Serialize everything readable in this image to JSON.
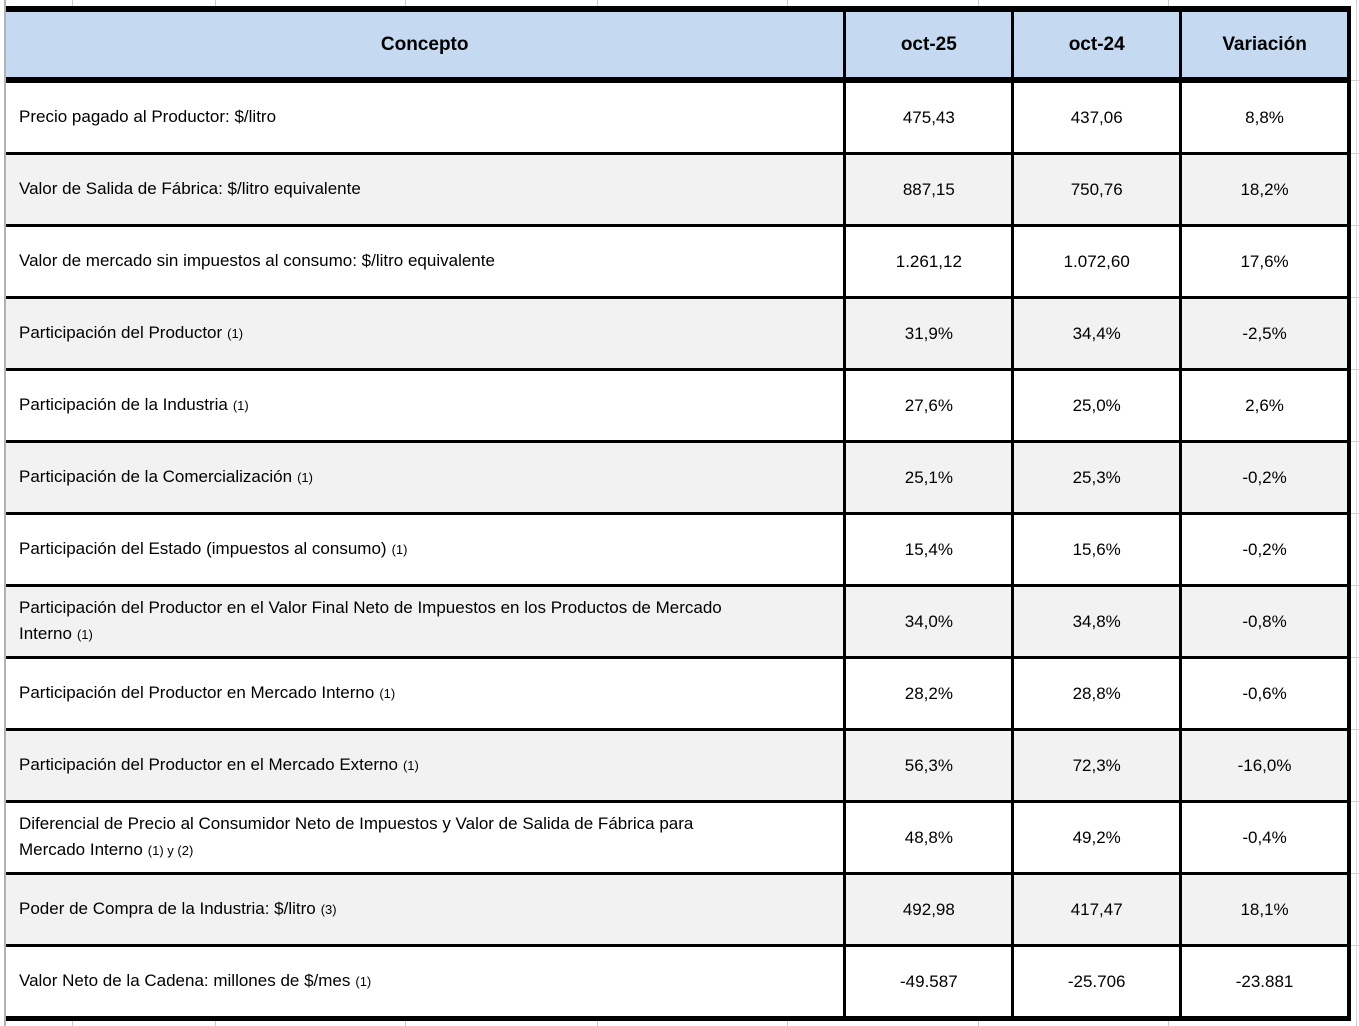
{
  "table": {
    "columns": [
      "Concepto",
      "oct-25",
      "oct-24",
      "Variación"
    ],
    "rows": [
      {
        "label": "Precio pagado al Productor: $/litro",
        "note": "",
        "oct25": "475,43",
        "oct24": "437,06",
        "variacion": "8,8%",
        "shaded": false
      },
      {
        "label": "Valor de Salida de Fábrica: $/litro equivalente",
        "note": "",
        "oct25": "887,15",
        "oct24": "750,76",
        "variacion": "18,2%",
        "shaded": true
      },
      {
        "label": "Valor de mercado sin impuestos al consumo: $/litro equivalente",
        "note": "",
        "oct25": "1.261,12",
        "oct24": "1.072,60",
        "variacion": "17,6%",
        "shaded": false
      },
      {
        "label": "Participación del Productor",
        "note": "(1)",
        "oct25": "31,9%",
        "oct24": "34,4%",
        "variacion": "-2,5%",
        "shaded": true
      },
      {
        "label": "Participación de la Industria",
        "note": "(1)",
        "oct25": "27,6%",
        "oct24": "25,0%",
        "variacion": "2,6%",
        "shaded": false
      },
      {
        "label": "Participación de la Comercialización",
        "note": "(1)",
        "oct25": "25,1%",
        "oct24": "25,3%",
        "variacion": "-0,2%",
        "shaded": true
      },
      {
        "label": "Participación del Estado (impuestos al consumo)",
        "note": "(1)",
        "oct25": "15,4%",
        "oct24": "15,6%",
        "variacion": "-0,2%",
        "shaded": false
      },
      {
        "label": "Participación del Productor en el Valor Final Neto de Impuestos en los Productos de Mercado Interno",
        "note": "(1)",
        "oct25": "34,0%",
        "oct24": "34,8%",
        "variacion": "-0,8%",
        "shaded": true
      },
      {
        "label": "Participación del Productor en Mercado Interno",
        "note": "(1)",
        "oct25": "28,2%",
        "oct24": "28,8%",
        "variacion": "-0,6%",
        "shaded": false
      },
      {
        "label": "Participación del Productor en el Mercado Externo",
        "note": "(1)",
        "oct25": "56,3%",
        "oct24": "72,3%",
        "variacion": "-16,0%",
        "shaded": true
      },
      {
        "label": "Diferencial de Precio al Consumidor Neto de Impuestos y Valor de Salida de Fábrica para Mercado Interno",
        "note": "(1) y (2)",
        "oct25": "48,8%",
        "oct24": "49,2%",
        "variacion": "-0,4%",
        "shaded": false
      },
      {
        "label": "Poder de Compra de la Industria: $/litro",
        "note": "(3)",
        "oct25": "492,98",
        "oct24": "417,47",
        "variacion": "18,1%",
        "shaded": true
      },
      {
        "label": "Valor Neto de la Cadena: millones de $/mes",
        "note": "(1)",
        "oct25": "-49.587",
        "oct24": "-25.706",
        "variacion": "-23.881",
        "shaded": false
      }
    ]
  },
  "colors": {
    "header_fill": "#c5d9f1",
    "shaded_row_fill": "#f2f2f2",
    "plain_row_fill": "#ffffff",
    "border": "#000000",
    "gridline": "#c9c9c9",
    "text": "#000000"
  }
}
